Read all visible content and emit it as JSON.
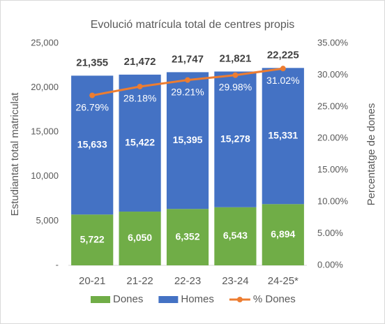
{
  "chart_data": {
    "type": "stacked-bar-line",
    "title": "Evolució matrícula total de centres propis",
    "y_label": "Estudiantat total matriculat",
    "y2_label": "Percentatge de dones",
    "categories": [
      "20-21",
      "21-22",
      "22-23",
      "23-24",
      "24-25*"
    ],
    "series": [
      {
        "name": "Dones",
        "type": "bar",
        "color": "#70ad47",
        "values": [
          5722,
          6050,
          6352,
          6543,
          6894
        ],
        "value_labels": [
          "5,722",
          "6,050",
          "6,352",
          "6,543",
          "6,894"
        ]
      },
      {
        "name": "Homes",
        "type": "bar",
        "color": "#4472c4",
        "values": [
          15633,
          15422,
          15395,
          15278,
          15331
        ],
        "value_labels": [
          "15,633",
          "15,422",
          "15,395",
          "15,278",
          "15,331"
        ]
      },
      {
        "name": "% Dones",
        "type": "line",
        "axis": "y2",
        "color": "#ed7d31",
        "values": [
          26.79,
          28.18,
          29.21,
          29.98,
          31.02
        ],
        "value_labels": [
          "26.79%",
          "28.18%",
          "29.21%",
          "29.98%",
          "31.02%"
        ]
      }
    ],
    "totals": {
      "values": [
        21355,
        21472,
        21747,
        21821,
        22225
      ],
      "value_labels": [
        "21,355",
        "21,472",
        "21,747",
        "21,821",
        "22,225"
      ]
    },
    "ylim": [
      0,
      25000
    ],
    "yticks": [
      {
        "value": 0,
        "label": "-"
      },
      {
        "value": 5000,
        "label": "5,000"
      },
      {
        "value": 10000,
        "label": "10,000"
      },
      {
        "value": 15000,
        "label": "15,000"
      },
      {
        "value": 20000,
        "label": "20,000"
      },
      {
        "value": 25000,
        "label": "25,000"
      }
    ],
    "y2lim": [
      0,
      35
    ],
    "y2ticks": [
      {
        "value": 0,
        "label": "0.00%"
      },
      {
        "value": 5,
        "label": "5.00%"
      },
      {
        "value": 10,
        "label": "10.00%"
      },
      {
        "value": 15,
        "label": "15.00%"
      },
      {
        "value": 20,
        "label": "20.00%"
      },
      {
        "value": 25,
        "label": "25.00%"
      },
      {
        "value": 30,
        "label": "30.00%"
      },
      {
        "value": 35,
        "label": "35.00%"
      }
    ],
    "legend": "bottom"
  }
}
